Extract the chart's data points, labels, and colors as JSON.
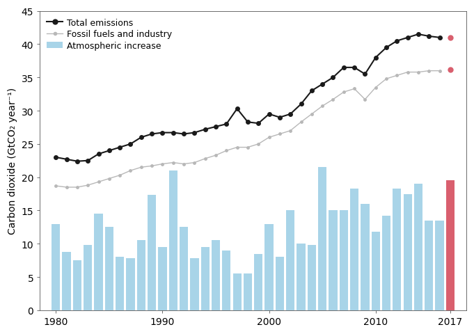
{
  "years_total": [
    1980,
    1981,
    1982,
    1983,
    1984,
    1985,
    1986,
    1987,
    1988,
    1989,
    1990,
    1991,
    1992,
    1993,
    1994,
    1995,
    1996,
    1997,
    1998,
    1999,
    2000,
    2001,
    2002,
    2003,
    2004,
    2005,
    2006,
    2007,
    2008,
    2009,
    2010,
    2011,
    2012,
    2013,
    2014,
    2015,
    2016
  ],
  "total_emissions": [
    23.0,
    22.7,
    22.4,
    22.5,
    23.5,
    24.0,
    24.5,
    25.0,
    26.0,
    26.5,
    26.7,
    26.7,
    26.5,
    26.7,
    27.2,
    27.6,
    28.0,
    30.3,
    28.3,
    28.1,
    29.5,
    29.0,
    29.5,
    31.0,
    33.0,
    34.0,
    35.0,
    36.5,
    36.5,
    35.5,
    38.0,
    39.5,
    40.5,
    41.0,
    41.5,
    41.2,
    41.0
  ],
  "total_2017": 41.0,
  "years_fossil": [
    1980,
    1981,
    1982,
    1983,
    1984,
    1985,
    1986,
    1987,
    1988,
    1989,
    1990,
    1991,
    1992,
    1993,
    1994,
    1995,
    1996,
    1997,
    1998,
    1999,
    2000,
    2001,
    2002,
    2003,
    2004,
    2005,
    2006,
    2007,
    2008,
    2009,
    2010,
    2011,
    2012,
    2013,
    2014,
    2015,
    2016
  ],
  "fossil_emissions": [
    18.7,
    18.5,
    18.5,
    18.8,
    19.3,
    19.8,
    20.3,
    21.0,
    21.5,
    21.7,
    22.0,
    22.2,
    22.0,
    22.2,
    22.8,
    23.3,
    24.0,
    24.5,
    24.5,
    25.0,
    26.0,
    26.5,
    27.0,
    28.3,
    29.5,
    30.7,
    31.7,
    32.8,
    33.3,
    31.7,
    33.5,
    34.8,
    35.3,
    35.8,
    35.8,
    36.0,
    36.0
  ],
  "fossil_2017": 36.2,
  "bar_years": [
    1980,
    1981,
    1982,
    1983,
    1984,
    1985,
    1986,
    1987,
    1988,
    1989,
    1990,
    1991,
    1992,
    1993,
    1994,
    1995,
    1996,
    1997,
    1998,
    1999,
    2000,
    2001,
    2002,
    2003,
    2004,
    2005,
    2006,
    2007,
    2008,
    2009,
    2010,
    2011,
    2012,
    2013,
    2014,
    2015,
    2016,
    2017
  ],
  "bar_values": [
    13.0,
    8.8,
    7.5,
    9.8,
    14.5,
    12.5,
    8.0,
    7.8,
    10.5,
    17.3,
    9.5,
    21.0,
    12.5,
    7.8,
    9.5,
    10.5,
    9.0,
    5.5,
    5.5,
    8.5,
    13.0,
    8.0,
    15.0,
    10.0,
    9.8,
    21.5,
    15.0,
    15.0,
    18.3,
    16.0,
    11.8,
    14.2,
    18.3,
    17.5,
    19.0,
    13.5,
    13.5,
    19.5
  ],
  "color_total": "#1a1a1a",
  "color_fossil": "#b8b8b8",
  "color_bar": "#a8d4e8",
  "color_highlight": "#d95f6e",
  "color_dot_2017": "#d95f6e",
  "ylabel": "Carbon dioxide (GtCO₂ year⁻¹)",
  "legend_total": "Total emissions",
  "legend_fossil": "Fossil fuels and industry",
  "legend_atm": "Atmospheric increase",
  "xlim": [
    1978.5,
    2018.5
  ],
  "ylim": [
    0,
    45
  ],
  "yticks": [
    0,
    5,
    10,
    15,
    20,
    25,
    30,
    35,
    40,
    45
  ],
  "xticks": [
    1980,
    1990,
    2000,
    2010,
    2017
  ],
  "background_color": "#ffffff"
}
